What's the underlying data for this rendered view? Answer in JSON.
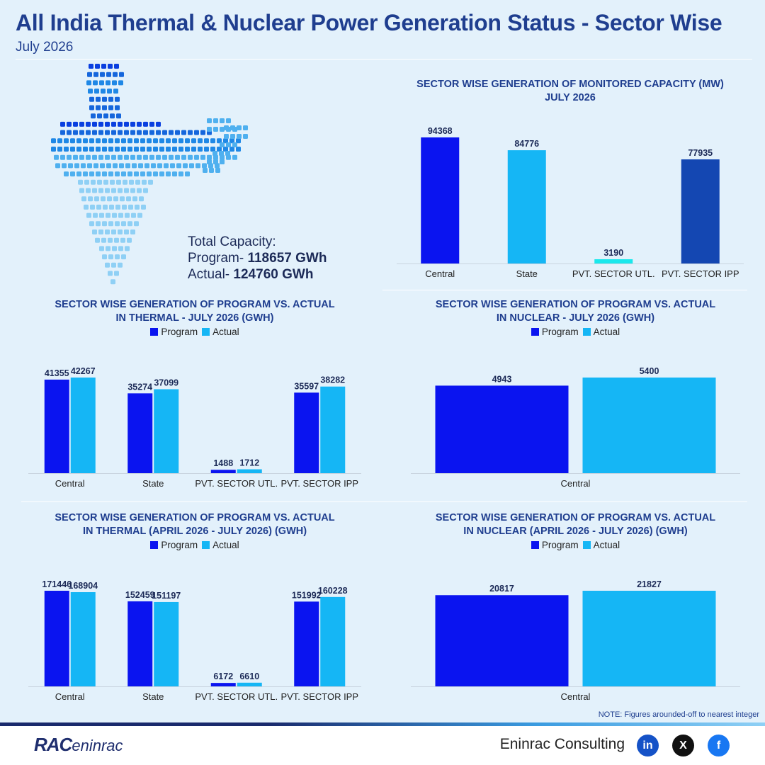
{
  "header": {
    "title": "All India Thermal & Nuclear Power Generation Status - Sector Wise",
    "subtitle": "July 2026"
  },
  "total_capacity": {
    "label": "Total Capacity:",
    "program_label": "Program-",
    "program_value": "118657 GWh",
    "actual_label": "Actual-",
    "actual_value": "124760 GWh"
  },
  "legend": {
    "program": "Program",
    "actual": "Actual"
  },
  "colors": {
    "program": "#0a14f0",
    "actual": "#15b6f5",
    "title": "#1f3e8f",
    "central": "#0a14f0",
    "state": "#15b6f5",
    "pvt_utl": "#19e8ec",
    "pvt_ipp": "#1447b2"
  },
  "chart_data": [
    {
      "id": "capacity",
      "type": "bar",
      "title": "SECTOR WISE GENERATION OF MONITORED CAPACITY (MW)\nJULY 2026",
      "categories": [
        "Central",
        "State",
        "PVT. SECTOR UTL.",
        "PVT. SECTOR IPP"
      ],
      "values": [
        94368,
        84776,
        3190,
        77935
      ],
      "ylim": [
        0,
        94368
      ]
    },
    {
      "id": "thermal_month",
      "type": "bar",
      "title": "SECTOR WISE GENERATION OF PROGRAM VS. ACTUAL\nIN THERMAL - JULY 2026 (GWH)",
      "categories": [
        "Central",
        "State",
        "PVT. SECTOR UTL.",
        "PVT. SECTOR IPP"
      ],
      "series": [
        {
          "name": "Program",
          "values": [
            41355,
            35274,
            1488,
            35597
          ]
        },
        {
          "name": "Actual",
          "values": [
            42267,
            37099,
            1712,
            38282
          ]
        }
      ],
      "ylim": [
        0,
        42267
      ]
    },
    {
      "id": "nuclear_month",
      "type": "bar",
      "title": "SECTOR WISE GENERATION OF PROGRAM VS. ACTUAL\nIN NUCLEAR  - JULY 2026 (GWH)",
      "categories": [
        "Central"
      ],
      "series": [
        {
          "name": "Program",
          "values": [
            4943
          ]
        },
        {
          "name": "Actual",
          "values": [
            5400
          ]
        }
      ],
      "ylim": [
        0,
        5400
      ]
    },
    {
      "id": "thermal_ytd",
      "type": "bar",
      "title": "SECTOR WISE GENERATION OF PROGRAM VS. ACTUAL\nIN THERMAL (APRIL 2026 - JULY 2026) (GWH)",
      "categories": [
        "Central",
        "State",
        "PVT. SECTOR UTL.",
        "PVT. SECTOR IPP"
      ],
      "series": [
        {
          "name": "Program",
          "values": [
            171446,
            152459,
            6172,
            151992
          ]
        },
        {
          "name": "Actual",
          "values": [
            168904,
            151197,
            6610,
            160228
          ]
        }
      ],
      "ylim": [
        0,
        171446
      ]
    },
    {
      "id": "nuclear_ytd",
      "type": "bar",
      "title": "SECTOR WISE GENERATION OF PROGRAM VS. ACTUAL\nIN NUCLEAR (APRIL 2026 - JULY 2026) (GWH)",
      "categories": [
        "Central"
      ],
      "series": [
        {
          "name": "Program",
          "values": [
            20817
          ]
        },
        {
          "name": "Actual",
          "values": [
            21827
          ]
        }
      ],
      "ylim": [
        0,
        21827
      ]
    }
  ],
  "note": "NOTE: Figures arounded-off to nearest integer",
  "footer": {
    "logo": "RAC",
    "logo_suffix": "eninrac",
    "brand": "Eninrac Consulting"
  },
  "social": [
    {
      "name": "linkedin-icon",
      "label": "in"
    },
    {
      "name": "x-icon",
      "label": "X"
    },
    {
      "name": "facebook-icon",
      "label": "f"
    }
  ]
}
